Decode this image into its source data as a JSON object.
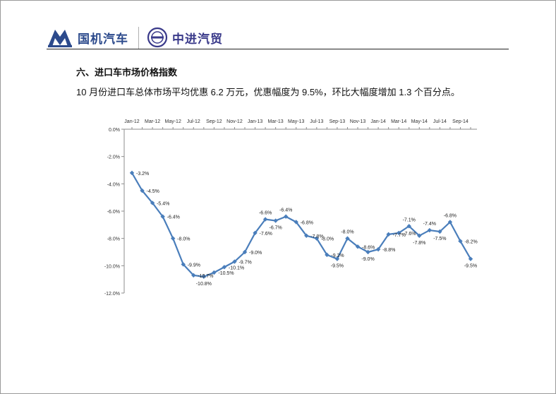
{
  "header": {
    "logo_left_text": "国机汽车",
    "logo_right_text": "中进汽贸"
  },
  "section": {
    "title": "六、进口车市场价格指数",
    "summary": "10 月份进口车总体市场平均优惠 6.2 万元，优惠幅度为 9.5%，环比大幅度增加 1.3 个百分点。"
  },
  "colors": {
    "series": "#4a7ebb",
    "brand_blue": "#2c4a8c"
  },
  "chart_data": {
    "type": "line",
    "title": "",
    "xlabel": "",
    "ylabel": "",
    "ylim": [
      -12,
      0
    ],
    "y_ticks": [
      "0.0%",
      "-2.0%",
      "-4.0%",
      "-6.0%",
      "-8.0%",
      "-10.0%",
      "-12.0%"
    ],
    "x_tick_labels": [
      "Jan-12",
      "Mar-12",
      "May-12",
      "Jul-12",
      "Sep-12",
      "Nov-12",
      "Jan-13",
      "Mar-13",
      "May-13",
      "Jul-13",
      "Sep-13",
      "Nov-13",
      "Jan-14",
      "Mar-14",
      "May-14",
      "Jul-14",
      "Sep-14"
    ],
    "x_axis_position": "top",
    "legend": "none",
    "grid": false,
    "x": [
      "Jan-12",
      "Feb-12",
      "Mar-12",
      "Apr-12",
      "May-12",
      "Jun-12",
      "Jul-12",
      "Aug-12",
      "Sep-12",
      "Oct-12",
      "Nov-12",
      "Dec-12",
      "Jan-13",
      "Feb-13",
      "Mar-13",
      "Apr-13",
      "May-13",
      "Jun-13",
      "Jul-13",
      "Aug-13",
      "Sep-13",
      "Oct-13",
      "Nov-13",
      "Dec-13",
      "Jan-14",
      "Feb-14",
      "Mar-14",
      "Apr-14",
      "May-14",
      "Jun-14",
      "Jul-14",
      "Aug-14",
      "Sep-14",
      "Oct-14"
    ],
    "values": [
      -3.2,
      -4.5,
      -5.4,
      -6.4,
      -8.0,
      -9.9,
      -10.7,
      -10.8,
      -10.5,
      -10.1,
      -9.7,
      -9.0,
      -7.6,
      -6.6,
      -6.7,
      -6.4,
      -6.8,
      -7.8,
      -8.0,
      -9.2,
      -9.5,
      -8.0,
      -8.6,
      -9.0,
      -8.8,
      -7.7,
      -7.6,
      -7.1,
      -7.8,
      -7.4,
      -7.5,
      -6.8,
      -8.2,
      -9.5
    ],
    "data_labels": [
      "-3.2%",
      "-4.5%",
      "-5.4%",
      "-6.4%",
      "-8.0%",
      "-9.9%",
      "-10.7%",
      "-10.8%",
      "-10.5%",
      "-10.1%",
      "-9.7%",
      "-9.0%",
      "-7.6%",
      "-6.6%",
      "-6.7%",
      "-6.4%",
      "-6.8%",
      "-7.8%",
      "-8.0%",
      "-9.2%",
      "-9.5%",
      "-8.0%",
      "-8.6%",
      "-9.0%",
      "-8.8%",
      "-7.7%",
      "-7.6%",
      "-7.1%",
      "-7.8%",
      "-7.4%",
      "-7.5%",
      "-6.8%",
      "-8.2%",
      "-9.5%"
    ]
  }
}
